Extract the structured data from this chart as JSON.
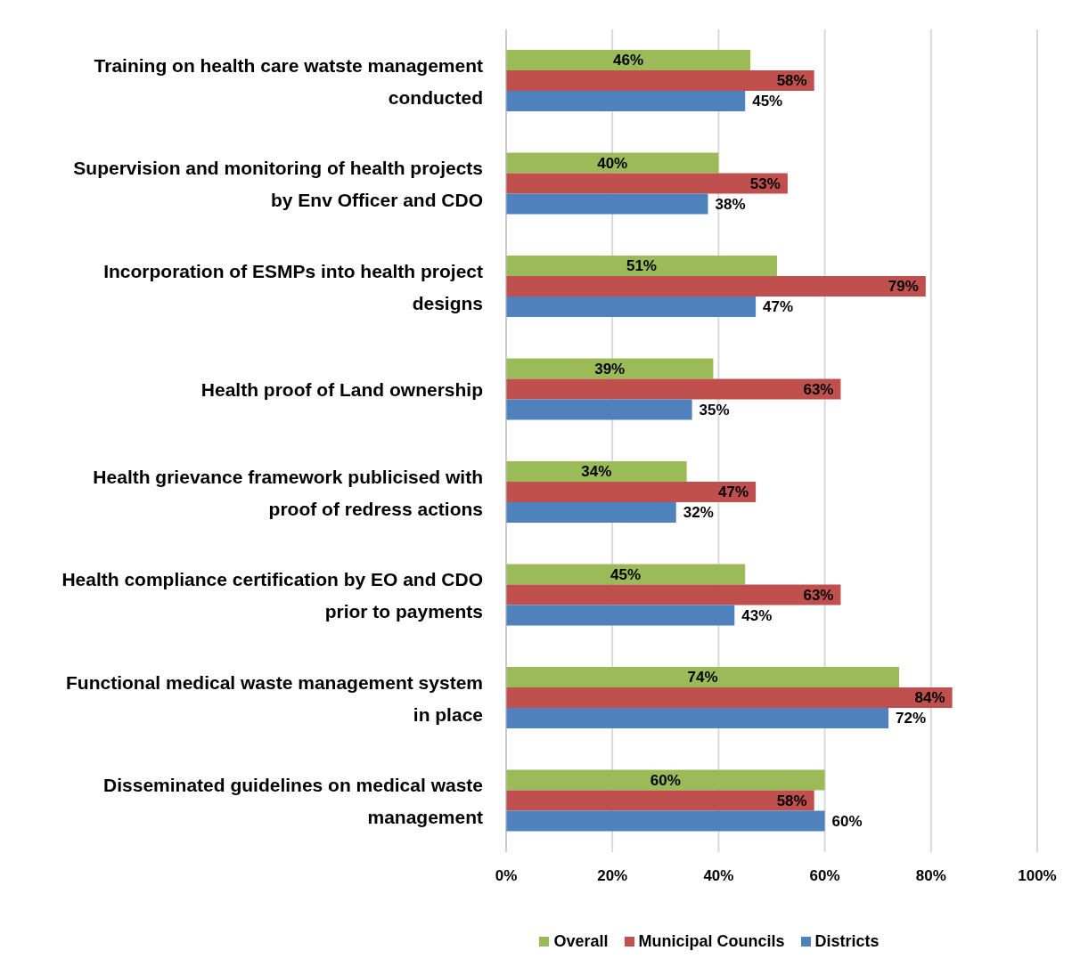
{
  "chart_data": {
    "type": "bar",
    "orientation": "horizontal",
    "categories": [
      "Training on health care watste management conducted",
      "Supervision and monitoring of health projects by Env Officer and CDO",
      "Incorporation of ESMPs into health project designs",
      "Health proof of Land ownership",
      "Health grievance framework publicised with proof of redress actions",
      "Health compliance certification by EO and CDO prior to payments",
      "Functional medical waste  management system in place",
      "Disseminated guidelines on medical waste management"
    ],
    "series": [
      {
        "name": "Overall",
        "color": "#9bbb59",
        "values": [
          46,
          40,
          51,
          39,
          34,
          45,
          74,
          60
        ],
        "value_labels": [
          "46%",
          "40%",
          "51%",
          "39%",
          "34%",
          "45%",
          "74%",
          "60%"
        ]
      },
      {
        "name": "Municipal Councils",
        "color": "#c0504d",
        "values": [
          58,
          53,
          79,
          63,
          47,
          63,
          84,
          58
        ],
        "value_labels": [
          "58%",
          "53%",
          "79%",
          "63%",
          "47%",
          "63%",
          "84%",
          "58%"
        ]
      },
      {
        "name": "Districts",
        "color": "#4f81bd",
        "values": [
          45,
          38,
          47,
          35,
          32,
          43,
          72,
          60
        ],
        "value_labels": [
          "45%",
          "38%",
          "47%",
          "35%",
          "32%",
          "43%",
          "72%",
          "60%"
        ]
      }
    ],
    "xlim": [
      0,
      100
    ],
    "xticks": [
      {
        "value": 0,
        "label": "0%"
      },
      {
        "value": 20,
        "label": "20%"
      },
      {
        "value": 40,
        "label": "40%"
      },
      {
        "value": 60,
        "label": "60%"
      },
      {
        "value": 80,
        "label": "80%"
      },
      {
        "value": 100,
        "label": "100%"
      }
    ],
    "grid": "x",
    "legend": "bottom"
  }
}
